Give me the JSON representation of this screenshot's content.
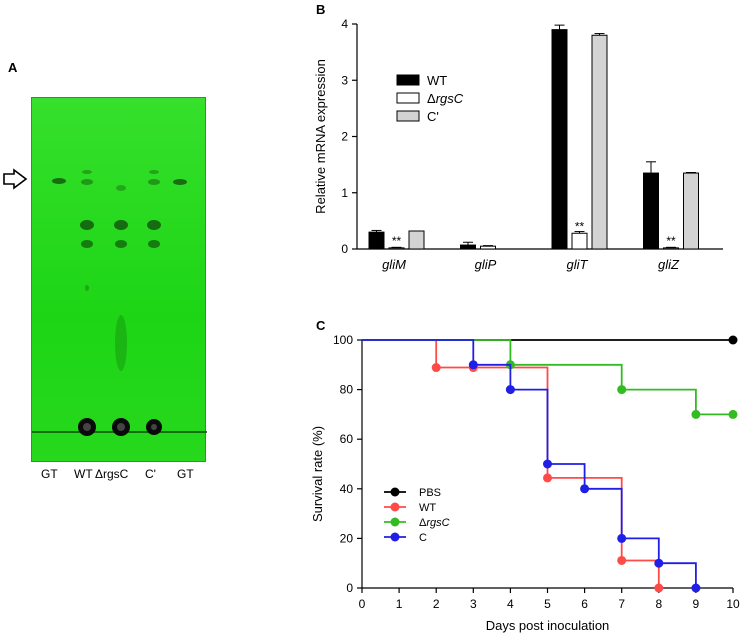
{
  "panels": {
    "a": {
      "letter": "A"
    },
    "b": {
      "letter": "B"
    },
    "c": {
      "letter": "C"
    }
  },
  "tlc": {
    "lane_labels": [
      "GT",
      "WT",
      "ΔrgsC",
      "C'",
      "GT"
    ],
    "plate_color": "#1fd616",
    "arrow_icon": "outline-right-arrow"
  },
  "chart_data": [
    {
      "type": "bar",
      "title": "",
      "xlabel": "",
      "ylabel": "Relative mRNA expression",
      "ylim": [
        0,
        4
      ],
      "yticks": [
        "0",
        "1",
        "2",
        "3",
        "4"
      ],
      "categories": [
        "gliM",
        "gliP",
        "gliT",
        "gliZ"
      ],
      "series": [
        {
          "name": "WT",
          "color": "#000000",
          "values": [
            0.3,
            0.07,
            3.9,
            1.35
          ],
          "errors": [
            0.03,
            0.05,
            0.08,
            0.2
          ]
        },
        {
          "name": "ΔrgsC",
          "color": "#ffffff",
          "values": [
            0.02,
            0.05,
            0.28,
            0.02
          ],
          "errors": [
            0.01,
            0.01,
            0.03,
            0.01
          ]
        },
        {
          "name": "C'",
          "color": "#d3d3d3",
          "values": [
            0.32,
            0.0,
            3.8,
            1.35
          ],
          "errors": [
            0.0,
            0.0,
            0.03,
            0.01
          ]
        }
      ],
      "annotations": [
        {
          "category": "gliM",
          "text": "**"
        },
        {
          "category": "gliT",
          "text": "**"
        },
        {
          "category": "gliZ",
          "text": "**"
        }
      ],
      "legend": "top-left"
    },
    {
      "type": "line",
      "step": true,
      "title": "",
      "xlabel": "Days post inoculation",
      "ylabel": "Survival rate (%)",
      "xlim": [
        0,
        10
      ],
      "ylim": [
        0,
        100
      ],
      "xticks": [
        "0",
        "1",
        "2",
        "3",
        "4",
        "5",
        "6",
        "7",
        "8",
        "9",
        "10"
      ],
      "yticks": [
        "0",
        "20",
        "40",
        "60",
        "80",
        "100"
      ],
      "series": [
        {
          "name": "PBS",
          "color": "#000000",
          "x": [
            10
          ],
          "y": [
            100
          ]
        },
        {
          "name": "WT",
          "color": "#ff4a4a",
          "x": [
            2,
            3,
            5,
            7,
            8
          ],
          "y": [
            88.9,
            88.9,
            44.4,
            11.1,
            0
          ]
        },
        {
          "name": "ΔrgsC",
          "color": "#33bb22",
          "x": [
            4,
            7,
            9,
            10
          ],
          "y": [
            90,
            80,
            70,
            70
          ]
        },
        {
          "name": "C",
          "color": "#1f1fe6",
          "x": [
            3,
            4,
            5,
            6,
            7,
            8,
            9
          ],
          "y": [
            90,
            80,
            50,
            40,
            20,
            10,
            0
          ]
        }
      ],
      "legend": "bottom-left"
    }
  ]
}
